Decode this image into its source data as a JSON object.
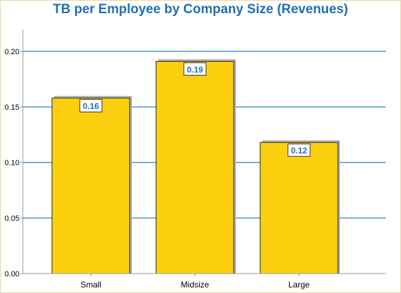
{
  "chart_data": {
    "type": "bar",
    "title": "TB per Employee by Company Size (Revenues)",
    "categories": [
      "Small",
      "Midsize",
      "Large"
    ],
    "values": [
      0.16,
      0.19,
      0.12
    ],
    "bar_values_precise": [
      0.158,
      0.191,
      0.118
    ],
    "data_labels": [
      "0.16",
      "0.19",
      "0.12"
    ],
    "xlabel": "",
    "ylabel": "",
    "ylim": [
      0,
      0.2
    ],
    "yticks": [
      "0.00",
      "0.05",
      "0.10",
      "0.15",
      "0.20"
    ],
    "grid": true,
    "legend": "none",
    "colors": {
      "bar": "#fdd00f",
      "bar_outline": "#222222",
      "bar_shadow": "#b0b0b0",
      "grid": "#2a7fb8",
      "title": "#1f6fb4",
      "data_label": "#1f6fb4"
    }
  }
}
